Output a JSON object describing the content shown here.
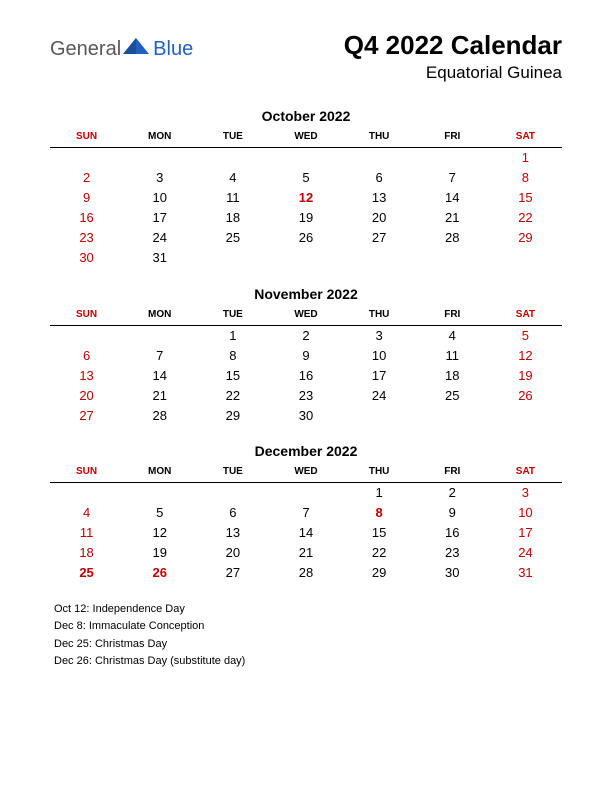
{
  "logo": {
    "word1": "General",
    "word2": "Blue",
    "tri_color": "#2060c0"
  },
  "title": "Q4 2022 Calendar",
  "subtitle": "Equatorial Guinea",
  "weekdays": [
    "SUN",
    "MON",
    "TUE",
    "WED",
    "THU",
    "FRI",
    "SAT"
  ],
  "weekend_cols": [
    0,
    6
  ],
  "text_color": "#000000",
  "weekend_color": "#c00000",
  "months": [
    {
      "name": "October 2022",
      "weeks": [
        [
          "",
          "",
          "",
          "",
          "",
          "",
          "1"
        ],
        [
          "2",
          "3",
          "4",
          "5",
          "6",
          "7",
          "8"
        ],
        [
          "9",
          "10",
          "11",
          "12",
          "13",
          "14",
          "15"
        ],
        [
          "16",
          "17",
          "18",
          "19",
          "20",
          "21",
          "22"
        ],
        [
          "23",
          "24",
          "25",
          "26",
          "27",
          "28",
          "29"
        ],
        [
          "30",
          "31",
          "",
          "",
          "",
          "",
          ""
        ]
      ],
      "holidays": [
        "12"
      ]
    },
    {
      "name": "November 2022",
      "weeks": [
        [
          "",
          "",
          "1",
          "2",
          "3",
          "4",
          "5"
        ],
        [
          "6",
          "7",
          "8",
          "9",
          "10",
          "11",
          "12"
        ],
        [
          "13",
          "14",
          "15",
          "16",
          "17",
          "18",
          "19"
        ],
        [
          "20",
          "21",
          "22",
          "23",
          "24",
          "25",
          "26"
        ],
        [
          "27",
          "28",
          "29",
          "30",
          "",
          "",
          ""
        ]
      ],
      "holidays": []
    },
    {
      "name": "December 2022",
      "weeks": [
        [
          "",
          "",
          "",
          "",
          "1",
          "2",
          "3"
        ],
        [
          "4",
          "5",
          "6",
          "7",
          "8",
          "9",
          "10"
        ],
        [
          "11",
          "12",
          "13",
          "14",
          "15",
          "16",
          "17"
        ],
        [
          "18",
          "19",
          "20",
          "21",
          "22",
          "23",
          "24"
        ],
        [
          "25",
          "26",
          "27",
          "28",
          "29",
          "30",
          "31"
        ]
      ],
      "holidays": [
        "8",
        "25",
        "26"
      ]
    }
  ],
  "holiday_list": [
    "Oct 12: Independence Day",
    "Dec 8: Immaculate Conception",
    "Dec 25: Christmas Day",
    "Dec 26: Christmas Day (substitute day)"
  ]
}
